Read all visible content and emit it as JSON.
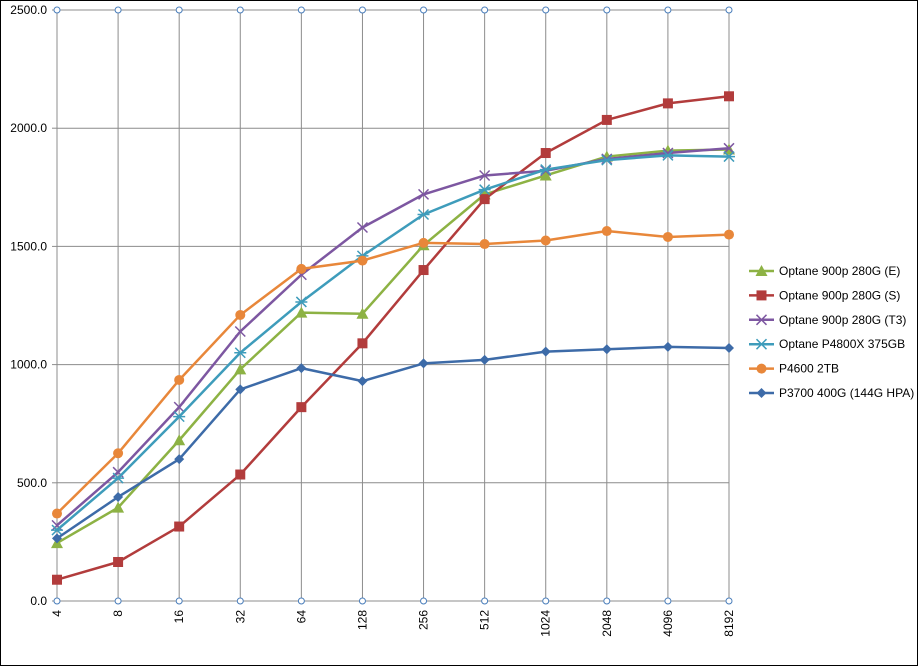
{
  "chart_data": {
    "type": "line",
    "title": "",
    "xlabel": "",
    "ylabel": "",
    "x": [
      "4",
      "8",
      "16",
      "32",
      "64",
      "128",
      "256",
      "512",
      "1024",
      "2048",
      "4096",
      "8192"
    ],
    "ylim": [
      0,
      2500
    ],
    "yticks": [
      "0.0",
      "500.0",
      "1000.0",
      "1500.0",
      "2000.0",
      "2500.0"
    ],
    "grid": true,
    "legend_position": "right",
    "series": [
      {
        "name": "Optane 900p 280G (E)",
        "color": "#8DB244",
        "marker": "triangle",
        "values": [
          245,
          395,
          680,
          980,
          1220,
          1215,
          1505,
          1720,
          1800,
          1880,
          1905,
          1910
        ]
      },
      {
        "name": "Optane 900p 280G (S)",
        "color": "#B23C3C",
        "marker": "square",
        "values": [
          90,
          165,
          315,
          535,
          820,
          1090,
          1400,
          1700,
          1895,
          2035,
          2105,
          2135
        ]
      },
      {
        "name": "Optane 900p 280G (T3)",
        "color": "#7D57A1",
        "marker": "x",
        "values": [
          320,
          545,
          820,
          1140,
          1380,
          1580,
          1720,
          1800,
          1820,
          1870,
          1895,
          1915
        ]
      },
      {
        "name": "Optane P4800X 375GB",
        "color": "#3E9CBB",
        "marker": "star",
        "values": [
          300,
          520,
          780,
          1050,
          1265,
          1460,
          1635,
          1740,
          1825,
          1865,
          1885,
          1880
        ]
      },
      {
        "name": "P4600 2TB",
        "color": "#E8873A",
        "marker": "circle",
        "values": [
          370,
          625,
          935,
          1210,
          1405,
          1440,
          1515,
          1510,
          1525,
          1565,
          1540,
          1550
        ]
      },
      {
        "name": "P3700 400G (144G HPA)",
        "color": "#3D6BA8",
        "marker": "diamond",
        "values": [
          265,
          440,
          600,
          895,
          985,
          930,
          1005,
          1020,
          1055,
          1065,
          1075,
          1070
        ]
      }
    ]
  }
}
